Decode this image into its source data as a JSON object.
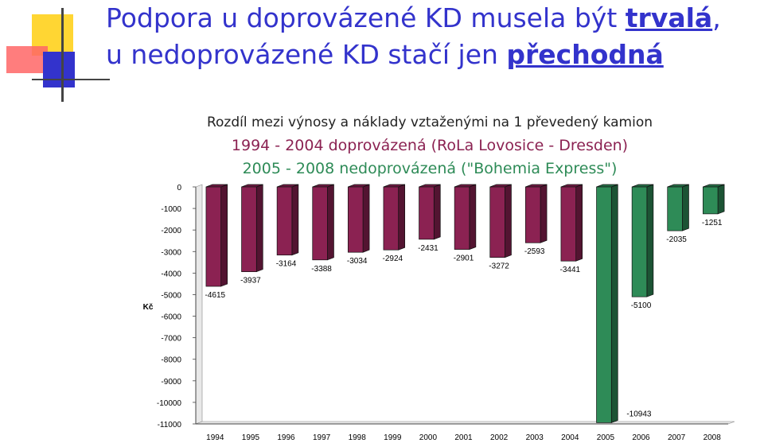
{
  "slide": {
    "title_line1": "Podpora u doprovázené KD musela být ",
    "title_em1": "trvalá",
    "title_line1_end": ",",
    "title_line2": "u nedoprovázené KD stačí jen ",
    "title_em2": "přechodná"
  },
  "colors": {
    "accent_title": "#3333cc",
    "series_accompanied": "#8b2252",
    "series_unaccompanied": "#2e8b57"
  },
  "chart_data": {
    "type": "bar",
    "title": "Rozdíl mezi výnosy a náklady vztaženými na 1 převedený kamion",
    "subtitle_lines": [
      "1994 - 2004 doprovázená (RoLa Lovosice - Dresden)",
      "2005 - 2008 nedoprovázená (\"Bohemia Express\")"
    ],
    "ylabel": "Kč",
    "xlabel": "",
    "ylim": [
      -11000,
      0
    ],
    "yticks": [
      0,
      -1000,
      -2000,
      -3000,
      -4000,
      -5000,
      -6000,
      -7000,
      -8000,
      -9000,
      -10000,
      -11000
    ],
    "categories": [
      "1994",
      "1995",
      "1996",
      "1997",
      "1998",
      "1999",
      "2000",
      "2001",
      "2002",
      "2003",
      "2004",
      "2005",
      "2006",
      "2007",
      "2008"
    ],
    "values": [
      -4615,
      -3937,
      -3164,
      -3388,
      -3034,
      -2924,
      -2431,
      -2901,
      -3272,
      -2593,
      -3441,
      -10943,
      -5100,
      -2035,
      -1251
    ],
    "bar_groups": [
      "accompanied",
      "accompanied",
      "accompanied",
      "accompanied",
      "accompanied",
      "accompanied",
      "accompanied",
      "accompanied",
      "accompanied",
      "accompanied",
      "accompanied",
      "unaccompanied",
      "unaccompanied",
      "unaccompanied",
      "unaccompanied"
    ],
    "grid": false,
    "style": "3d-bars"
  }
}
